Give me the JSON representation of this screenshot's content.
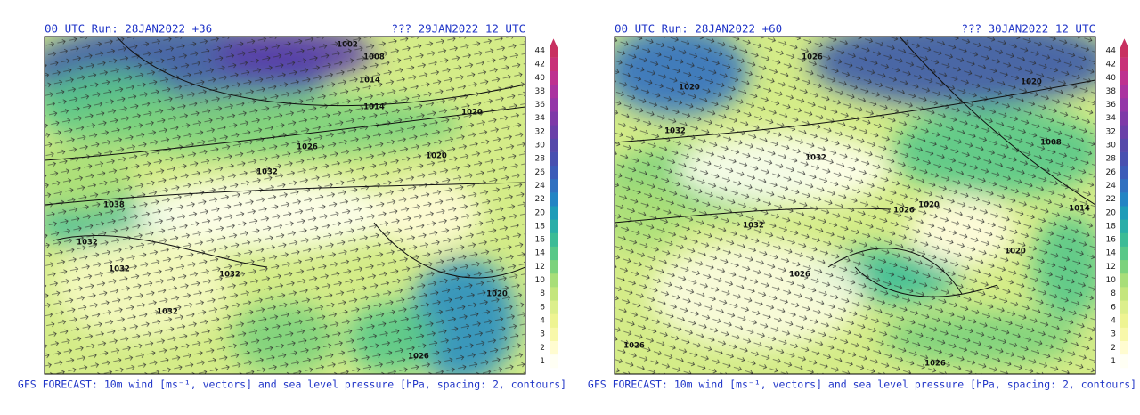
{
  "panels": [
    {
      "run_label": "00 UTC Run: 28JAN2022 +36",
      "valid_label": "??? 29JAN2022 12 UTC",
      "caption": "GFS FORECAST: 10m wind [ms⁻¹, vectors] and sea level pressure [hPa, spacing: 2, contours]",
      "isobar_labels": [
        "1002",
        "1008",
        "1014",
        "1014",
        "1020",
        "1026",
        "1020",
        "1032",
        "1038",
        "1032",
        "1032",
        "1032",
        "1032",
        "1020",
        "1026"
      ]
    },
    {
      "run_label": "00 UTC Run: 28JAN2022 +60",
      "valid_label": "??? 30JAN2022 12 UTC",
      "caption": "GFS FORECAST: 10m wind [ms⁻¹, vectors] and sea level pressure [hPa, spacing: 2, contours]",
      "isobar_labels": [
        "1026",
        "1020",
        "1020",
        "1032",
        "1032",
        "1008",
        "1032",
        "1026",
        "1020",
        "1014",
        "1026",
        "1020",
        "1026",
        "1026"
      ]
    }
  ],
  "colorbar": {
    "ticks": [
      1,
      2,
      3,
      4,
      6,
      8,
      10,
      12,
      14,
      16,
      18,
      20,
      22,
      24,
      26,
      28,
      30,
      32,
      34,
      36,
      38,
      40,
      42,
      44
    ],
    "colors": [
      "#fffff4",
      "#fffcd0",
      "#f8f8aa",
      "#eef492",
      "#dcef8c",
      "#c4e67c",
      "#a8de78",
      "#7cd27c",
      "#58c888",
      "#3cbc96",
      "#2aaea8",
      "#1e9cb8",
      "#2284c4",
      "#3070c0",
      "#3c5cb8",
      "#4850b0",
      "#5648aa",
      "#6a40a8",
      "#7e3aa8",
      "#9436a8",
      "#aa32a0",
      "#be3090",
      "#c83078",
      "#c83060"
    ]
  }
}
